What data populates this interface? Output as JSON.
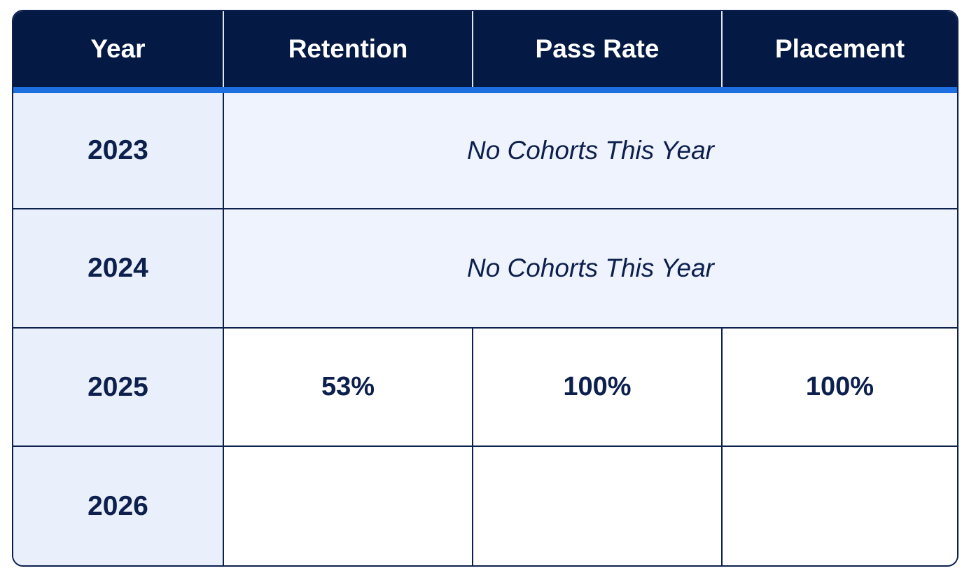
{
  "table": {
    "headers": [
      "Year",
      "Retention",
      "Pass Rate",
      "Placement"
    ],
    "rows": [
      {
        "year": "2023",
        "note": "No Cohorts This Year"
      },
      {
        "year": "2024",
        "note": "No Cohorts This Year"
      },
      {
        "year": "2025",
        "retention": "53%",
        "pass_rate": "100%",
        "placement": "100%"
      },
      {
        "year": "2026",
        "retention": "",
        "pass_rate": "",
        "placement": ""
      }
    ]
  },
  "colors": {
    "header_bg": "#041a44",
    "header_accent": "#1e6fe0",
    "year_bg": "#eaf0fb",
    "text": "#0c1f4d"
  }
}
